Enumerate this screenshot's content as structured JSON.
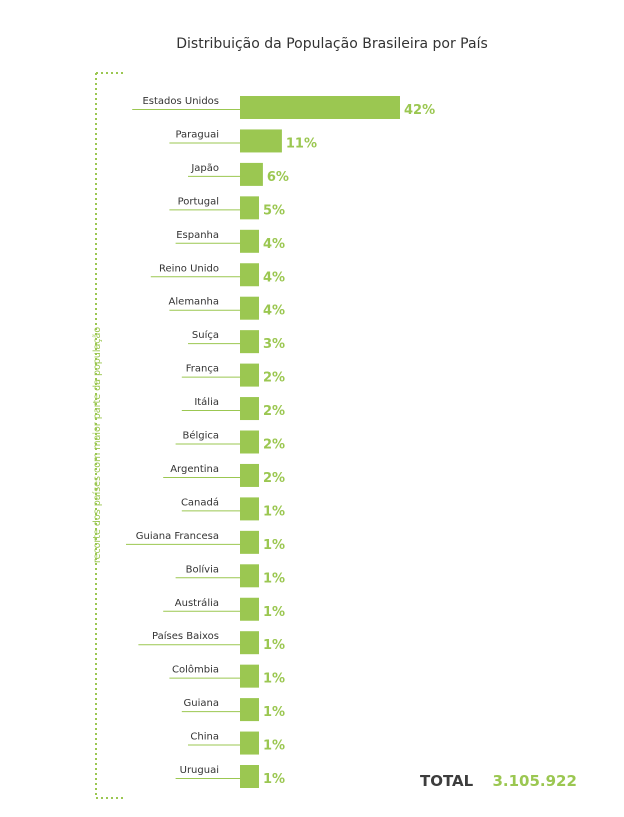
{
  "chart_data": {
    "type": "bar",
    "orientation": "horizontal",
    "title": "Distribuição da População Brasileira por País",
    "side_label": "recorte dos países com maior parte da população",
    "categories": [
      "Estados Unidos",
      "Paraguai",
      "Japão",
      "Portugal",
      "Espanha",
      "Reino Unido",
      "Alemanha",
      "Suíça",
      "França",
      "Itália",
      "Bélgica",
      "Argentina",
      "Canadá",
      "Guiana Francesa",
      "Bolívia",
      "Austrália",
      "Países Baixos",
      "Colômbia",
      "Guiana",
      "China",
      "Uruguai"
    ],
    "values": [
      42,
      11,
      6,
      5,
      4,
      4,
      4,
      3,
      2,
      2,
      2,
      2,
      1,
      1,
      1,
      1,
      1,
      1,
      1,
      1,
      1
    ],
    "value_labels": [
      "42%",
      "11%",
      "6%",
      "5%",
      "4%",
      "4%",
      "4%",
      "3%",
      "2%",
      "2%",
      "2%",
      "2%",
      "1%",
      "1%",
      "1%",
      "1%",
      "1%",
      "1%",
      "1%",
      "1%",
      "1%"
    ],
    "unit": "%",
    "bar_color": "#9bc751",
    "label_color": "#333333",
    "axis_visible": false,
    "grid": false
  },
  "total": {
    "label": "TOTAL",
    "value": "3.105.922"
  }
}
